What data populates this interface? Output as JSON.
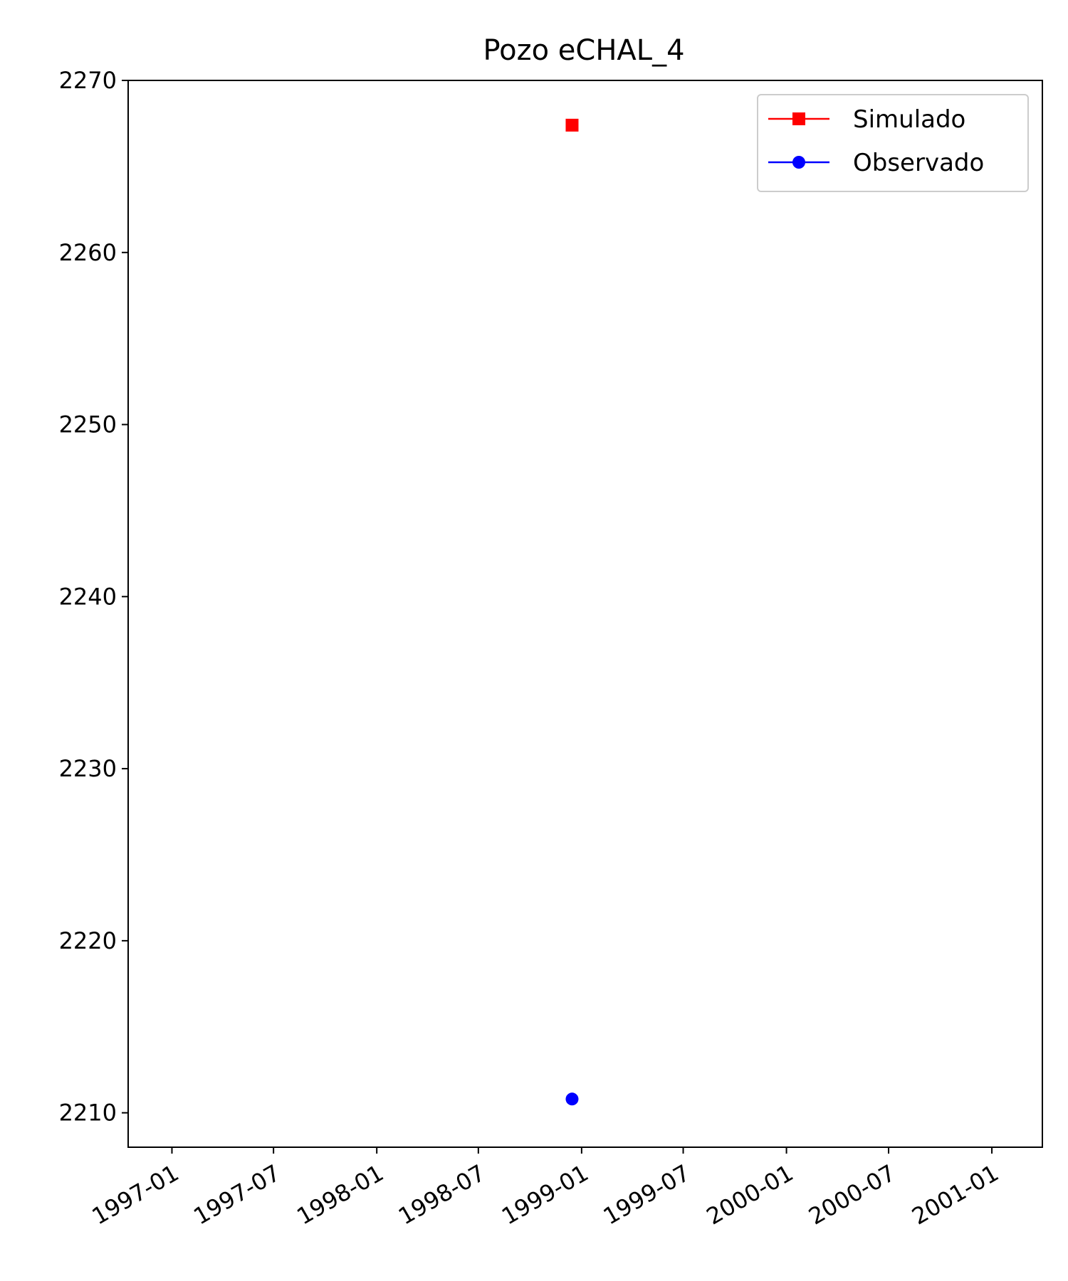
{
  "chart_data": {
    "type": "scatter",
    "title": "Pozo eCHAL_4",
    "xlabel": "",
    "ylabel": "",
    "x_ticks": [
      "1997-01",
      "1997-07",
      "1998-01",
      "1998-07",
      "1999-01",
      "1999-07",
      "2000-01",
      "2000-07",
      "2001-01"
    ],
    "y_ticks": [
      2210,
      2220,
      2230,
      2240,
      2250,
      2260,
      2270
    ],
    "ylim": [
      2208,
      2270
    ],
    "xlim": [
      "1996-10-15",
      "2001-04-01"
    ],
    "series": [
      {
        "name": "Simulado",
        "marker": "square",
        "color": "#ff0000",
        "points": [
          {
            "x": "1998-12-15",
            "y": 2267.4
          }
        ]
      },
      {
        "name": "Observado",
        "marker": "circle",
        "color": "#0000ff",
        "points": [
          {
            "x": "1998-12-15",
            "y": 2210.8
          }
        ]
      }
    ],
    "legend_position": "top-right",
    "grid": false
  }
}
